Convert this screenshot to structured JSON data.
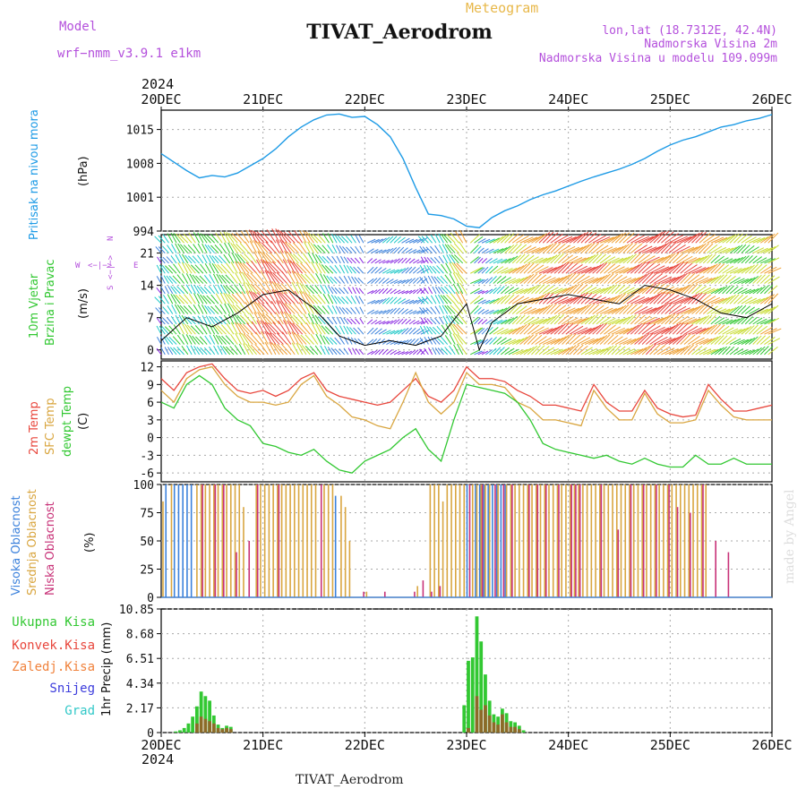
{
  "header": {
    "program": "Meteogram",
    "model_label": "Model",
    "model_name": "wrf−nmm_v3.9.1  e1km",
    "station": "TIVAT_Aerodrom",
    "lonlat": "lon,lat (18.7312E, 42.4N)",
    "elevation": "Nadmorska Visina 2m",
    "model_elevation": "Nadmorska Visina u modelu 109.099m",
    "year": "2024",
    "footer_station": "TIVAT_Aerodrom",
    "credit": "made by Angel"
  },
  "x_axis": {
    "ticks": [
      "20DEC",
      "21DEC",
      "22DEC",
      "23DEC",
      "24DEC",
      "25DEC",
      "26DEC"
    ],
    "hours_span": 144
  },
  "colors": {
    "pressure": "#1e9be6",
    "t2": "#e8463c",
    "sfc": "#d9a640",
    "dew": "#32c832",
    "high_cloud": "#3c82dc",
    "mid_cloud": "#d9a640",
    "low_cloud": "#c83278",
    "total_precip": "#32c832",
    "conv_precip": "#e8463c",
    "nonconv_precip": "#f0823c",
    "snow": "#3c3cdc",
    "hail": "#32c8c8",
    "label_purple": "#b450dc"
  },
  "chart_data": [
    {
      "type": "line",
      "name": "pressure",
      "ylabel": [
        "Pritisak na nivou mora",
        "(hPa)"
      ],
      "yticks": [
        994,
        1001,
        1008,
        1015
      ],
      "ylim": [
        994,
        1019
      ],
      "series": [
        {
          "name": "Pritisak na nivou mora",
          "x": [
            0,
            6,
            9,
            12,
            15,
            18,
            21,
            24,
            27,
            30,
            33,
            36,
            39,
            42,
            45,
            48,
            51,
            54,
            57,
            60,
            63,
            66,
            69,
            72,
            75,
            78,
            81,
            84,
            87,
            90,
            93,
            96,
            99,
            102,
            105,
            108,
            111,
            114,
            117,
            120,
            123,
            126,
            129,
            132,
            135,
            138,
            141,
            144
          ],
          "values": [
            1010,
            1006.5,
            1005,
            1005.5,
            1005.2,
            1006,
            1007.5,
            1009,
            1011,
            1013.5,
            1015.5,
            1017,
            1018,
            1018.2,
            1017.5,
            1017.7,
            1016,
            1013.5,
            1009,
            1003,
            997.5,
            997.2,
            996.5,
            995,
            994.7,
            996.8,
            998.2,
            999.2,
            1000.5,
            1001.5,
            1002.3,
            1003.3,
            1004.3,
            1005.2,
            1006,
            1006.8,
            1007.8,
            1009,
            1010.5,
            1011.8,
            1012.8,
            1013.5,
            1014.5,
            1015.5,
            1016,
            1016.8,
            1017.3,
            1018.1
          ]
        }
      ]
    },
    {
      "type": "scatter",
      "name": "wind",
      "ylabel": [
        "10m Vjetar",
        "Brzina i Pravac",
        "(m/s)"
      ],
      "compass": {
        "n": "N",
        "e": "E",
        "s": "S",
        "w": "W",
        "arrows": "<−|−>"
      },
      "yticks": [
        0,
        7,
        14,
        21
      ],
      "ylim": [
        -2,
        25
      ],
      "series": [
        {
          "name": "wind speed",
          "x": [
            0,
            6,
            12,
            18,
            24,
            30,
            36,
            42,
            48,
            54,
            60,
            66,
            72,
            75,
            78,
            84,
            90,
            96,
            102,
            108,
            114,
            120,
            126,
            132,
            138,
            144
          ],
          "values": [
            2,
            7,
            5,
            8,
            12,
            13,
            9,
            3,
            1,
            2,
            1,
            3,
            10,
            0,
            6,
            10,
            11,
            12,
            11,
            10,
            14,
            13,
            11,
            8,
            7,
            10
          ]
        }
      ]
    },
    {
      "type": "line",
      "name": "temperature",
      "ylabel": [
        "2m Temp",
        "SFC Temp",
        "dewpt Temp",
        "(C)"
      ],
      "yticks": [
        -6,
        -3,
        0,
        3,
        6,
        9,
        12
      ],
      "ylim": [
        -7.5,
        13
      ],
      "x": [
        0,
        3,
        6,
        9,
        12,
        15,
        18,
        21,
        24,
        27,
        30,
        33,
        36,
        39,
        42,
        45,
        48,
        51,
        54,
        57,
        60,
        63,
        66,
        69,
        72,
        75,
        78,
        81,
        84,
        87,
        90,
        93,
        96,
        99,
        102,
        105,
        108,
        111,
        114,
        117,
        120,
        123,
        126,
        129,
        132,
        135,
        138,
        141,
        144
      ],
      "series": [
        {
          "name": "2m Temp",
          "values": [
            10,
            8,
            11,
            12,
            12.5,
            10,
            8,
            7.5,
            8,
            7,
            8,
            10,
            11,
            8,
            7,
            6.5,
            6,
            5.5,
            6,
            8,
            10,
            7,
            6,
            8,
            12,
            10,
            10,
            9.5,
            8,
            7,
            5.5,
            5.5,
            5,
            4.5,
            9,
            6,
            4.5,
            4.5,
            8,
            5,
            4,
            3.5,
            3.8,
            9,
            6.5,
            4.5,
            4.5,
            5,
            5.5
          ]
        },
        {
          "name": "SFC Temp",
          "values": [
            8,
            6,
            10,
            11.5,
            12,
            9,
            7,
            6,
            6,
            5.5,
            6,
            9,
            10.5,
            7,
            5.5,
            3.5,
            3,
            2,
            1.5,
            6,
            11,
            6,
            4,
            6,
            11,
            9,
            9,
            8.5,
            6,
            5,
            3,
            3,
            2.5,
            2,
            8,
            5,
            3,
            3,
            7.5,
            4,
            2.5,
            2.5,
            3,
            8,
            5.5,
            3.5,
            3,
            3,
            3
          ]
        },
        {
          "name": "dewpt Temp",
          "values": [
            6,
            5,
            9,
            10.5,
            9,
            5,
            3,
            2,
            -1,
            -1.5,
            -2.5,
            -3,
            -2,
            -4,
            -5.5,
            -6,
            -4,
            -3,
            -2,
            0,
            1.5,
            -2,
            -4,
            3,
            9,
            8.5,
            8,
            7.5,
            6,
            3,
            -1,
            -2,
            -2.5,
            -3,
            -3.5,
            -3,
            -4,
            -4.5,
            -3.5,
            -4.5,
            -5,
            -5,
            -3,
            -4.5,
            -4.5,
            -3.5,
            -4.5,
            -4.5,
            -4.5
          ]
        }
      ]
    },
    {
      "type": "bar",
      "name": "cloud",
      "ylabel": [
        "Visoka Oblacnost",
        "Srednja Oblacnost",
        "Niska  Oblacnost",
        "(%)"
      ],
      "yticks": [
        0,
        25,
        50,
        75,
        100
      ],
      "ylim": [
        0,
        100
      ],
      "series": [
        {
          "name": "Visoka Oblacnost",
          "x": [
            1,
            3,
            4,
            5,
            6,
            7,
            41,
            72,
            74,
            75,
            76,
            77,
            78,
            79,
            80,
            81
          ],
          "values": [
            100,
            100,
            100,
            100,
            100,
            100,
            90,
            100,
            100,
            100,
            100,
            100,
            100,
            100,
            100,
            100
          ]
        },
        {
          "name": "Srednja Oblacnost",
          "x": [
            0,
            2,
            8,
            9,
            10,
            11,
            12,
            13,
            14,
            15,
            16,
            17,
            18,
            19,
            22,
            23,
            24,
            25,
            26,
            27,
            28,
            29,
            30,
            31,
            32,
            33,
            34,
            35,
            36,
            38,
            39,
            40,
            42,
            43,
            44,
            48,
            60,
            63,
            64,
            65,
            66,
            67,
            68,
            69,
            70,
            71,
            73,
            74,
            75,
            76,
            77,
            79,
            81,
            82,
            83,
            84,
            85,
            86,
            87,
            88,
            89,
            90,
            91,
            92,
            93,
            94,
            95,
            96,
            97,
            98,
            99,
            100,
            101,
            102,
            103,
            104,
            105,
            106,
            107,
            108,
            109,
            110,
            111,
            112,
            113,
            114,
            115,
            116,
            117,
            118,
            119,
            120,
            121,
            122,
            123,
            124,
            125,
            126,
            127,
            128
          ],
          "values": [
            85,
            100,
            100,
            100,
            100,
            100,
            100,
            100,
            100,
            100,
            100,
            100,
            100,
            80,
            100,
            100,
            100,
            100,
            100,
            100,
            100,
            100,
            100,
            100,
            100,
            100,
            100,
            100,
            100,
            100,
            100,
            100,
            90,
            80,
            50,
            5,
            10,
            100,
            100,
            100,
            85,
            100,
            100,
            100,
            100,
            100,
            100,
            100,
            100,
            100,
            100,
            100,
            100,
            100,
            100,
            100,
            100,
            100,
            100,
            100,
            100,
            100,
            100,
            100,
            100,
            100,
            100,
            100,
            100,
            100,
            100,
            100,
            100,
            100,
            100,
            100,
            100,
            100,
            100,
            100,
            100,
            100,
            100,
            100,
            100,
            100,
            100,
            100,
            100,
            100,
            100,
            100,
            100,
            100,
            100,
            100,
            100,
            100,
            100,
            100
          ]
        },
        {
          "name": "Niska  Oblacnost",
          "x": [
            9,
            12,
            14,
            17,
            20,
            22,
            27,
            37,
            47,
            52,
            59,
            61,
            63,
            65,
            72,
            75,
            78,
            80,
            82,
            86,
            88,
            90,
            93,
            96,
            97,
            98,
            103,
            107,
            110,
            113,
            116,
            119,
            121,
            124,
            127,
            130,
            133
          ],
          "values": [
            100,
            100,
            100,
            40,
            50,
            100,
            100,
            100,
            5,
            5,
            5,
            15,
            5,
            10,
            100,
            100,
            100,
            100,
            100,
            100,
            100,
            100,
            100,
            100,
            100,
            100,
            100,
            60,
            100,
            100,
            100,
            100,
            80,
            75,
            100,
            50,
            40
          ]
        }
      ]
    },
    {
      "type": "bar",
      "name": "precipitation",
      "ylabel": [
        "Ukupna Kisa",
        "Konvek.Kisa",
        "Zaledj.Kisa",
        "Snijeg",
        "Grad",
        "1hr Precip (mm)"
      ],
      "yticks": [
        "0",
        "2.17",
        "4.34",
        "6.51",
        "8.68",
        "10.85"
      ],
      "ylim": [
        0,
        10.85
      ],
      "series": [
        {
          "name": "Ukupna Kisa",
          "x": [
            3,
            4,
            5,
            6,
            7,
            8,
            9,
            10,
            11,
            12,
            13,
            14,
            15,
            16,
            71,
            72,
            73,
            74,
            75,
            76,
            77,
            78,
            79,
            80,
            81,
            82,
            83,
            84,
            85
          ],
          "values": [
            0.1,
            0.2,
            0.4,
            0.8,
            1.4,
            2.3,
            3.6,
            3.2,
            2.8,
            1.5,
            0.7,
            0.4,
            0.6,
            0.5,
            2.4,
            6.3,
            6.6,
            10.2,
            8.0,
            5.1,
            2.8,
            1.6,
            1.4,
            2.1,
            1.7,
            1.0,
            0.9,
            0.6,
            0.2
          ]
        },
        {
          "name": "Konvek.Kisa",
          "x": [
            8,
            9,
            10,
            11,
            12,
            13,
            14,
            15,
            16,
            72,
            74,
            75,
            76,
            77,
            78,
            79,
            80,
            81,
            82,
            83,
            84
          ],
          "values": [
            0.8,
            1.4,
            1.2,
            1.0,
            0.8,
            0.4,
            0.3,
            0.4,
            0.3,
            0.4,
            3.2,
            2.0,
            2.4,
            1.5,
            0.9,
            0.7,
            1.6,
            0.9,
            0.5,
            0.5,
            0.3
          ]
        },
        {
          "name": "Zaledj.Kisa",
          "x": [],
          "values": []
        },
        {
          "name": "Snijeg",
          "x": [],
          "values": []
        },
        {
          "name": "Grad",
          "x": [],
          "values": []
        }
      ]
    }
  ]
}
